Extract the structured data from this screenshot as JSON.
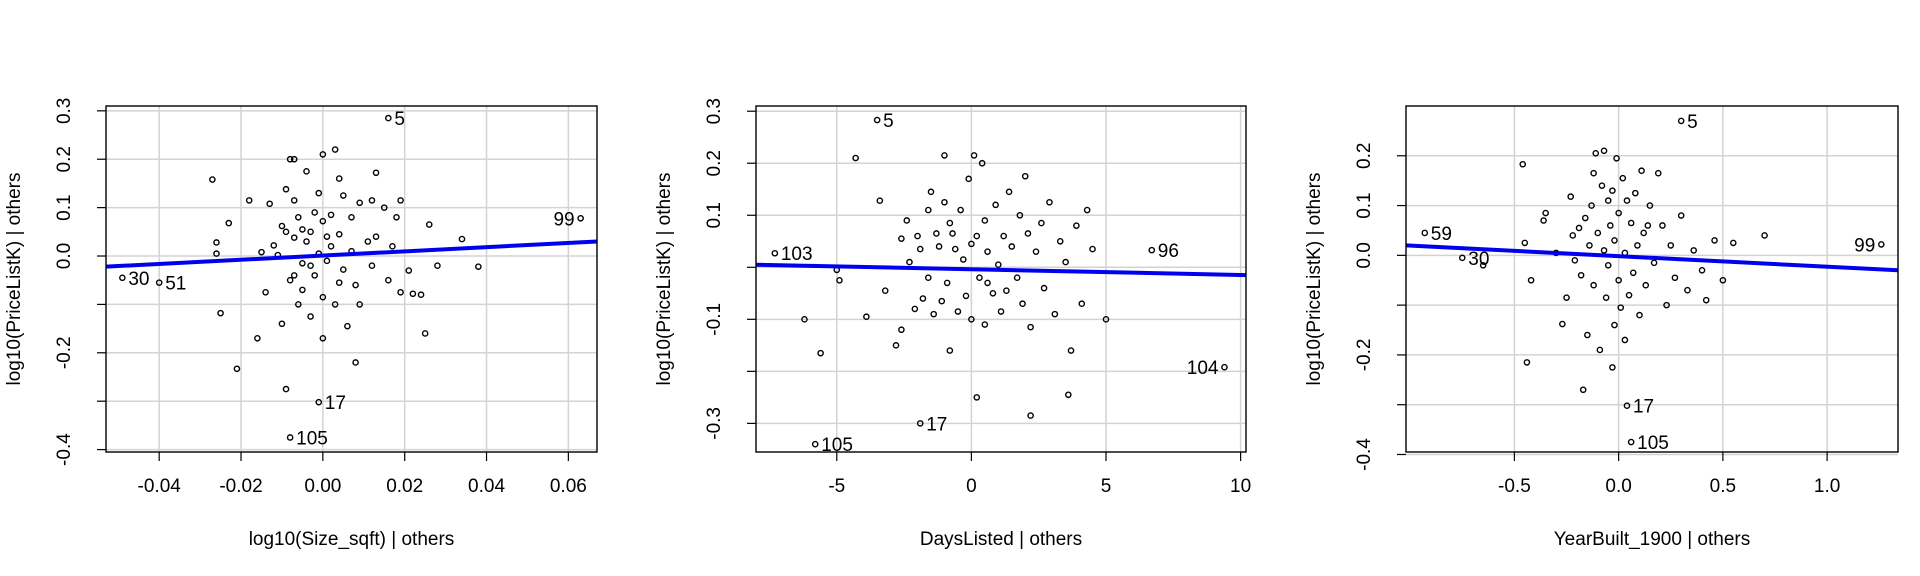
{
  "chart_data": [
    {
      "type": "scatter",
      "title": "",
      "xlabel": "log10(Size_sqft) | others",
      "ylabel": "log10(PriceListK)  | others",
      "xlim": [
        -0.053,
        0.067
      ],
      "ylim": [
        -0.405,
        0.31
      ],
      "xticks": [
        -0.04,
        -0.02,
        0.0,
        0.02,
        0.04,
        0.06
      ],
      "xtick_labels": [
        "-0.04",
        "-0.02",
        "0.00",
        "0.02",
        "0.04",
        "0.06"
      ],
      "yticks": [
        -0.4,
        -0.3,
        -0.2,
        -0.1,
        0.0,
        0.1,
        0.2,
        0.3
      ],
      "ytick_labels": [
        "-0.4",
        "",
        "-0.2",
        "",
        "0.0",
        "0.1",
        "0.2",
        "0.3"
      ],
      "grid": true,
      "fit_line": {
        "x": [
          -0.053,
          0.067
        ],
        "y": [
          -0.022,
          0.03
        ]
      },
      "labeled_points": [
        {
          "label": "5",
          "x": 0.016,
          "y": 0.285
        },
        {
          "label": "99",
          "x": 0.063,
          "y": 0.078
        },
        {
          "label": "30",
          "x": -0.049,
          "y": -0.045
        },
        {
          "label": "51",
          "x": -0.04,
          "y": -0.055
        },
        {
          "label": "17",
          "x": -0.001,
          "y": -0.302
        },
        {
          "label": "105",
          "x": -0.008,
          "y": -0.375
        }
      ],
      "points": [
        [
          -0.027,
          0.158
        ],
        [
          -0.026,
          0.028
        ],
        [
          -0.026,
          0.005
        ],
        [
          -0.025,
          -0.118
        ],
        [
          -0.023,
          0.068
        ],
        [
          -0.021,
          -0.233
        ],
        [
          -0.018,
          0.115
        ],
        [
          -0.016,
          -0.17
        ],
        [
          -0.015,
          0.008
        ],
        [
          -0.014,
          -0.075
        ],
        [
          -0.013,
          0.108
        ],
        [
          -0.012,
          0.022
        ],
        [
          -0.011,
          0.002
        ],
        [
          -0.01,
          0.062
        ],
        [
          -0.01,
          -0.14
        ],
        [
          -0.009,
          -0.275
        ],
        [
          -0.009,
          0.138
        ],
        [
          -0.009,
          0.05
        ],
        [
          -0.008,
          -0.05
        ],
        [
          -0.008,
          0.2
        ],
        [
          -0.007,
          0.2
        ],
        [
          -0.007,
          0.115
        ],
        [
          -0.007,
          0.038
        ],
        [
          -0.007,
          -0.04
        ],
        [
          -0.006,
          -0.1
        ],
        [
          -0.006,
          0.08
        ],
        [
          -0.005,
          0.055
        ],
        [
          -0.005,
          -0.015
        ],
        [
          -0.005,
          -0.07
        ],
        [
          -0.004,
          0.175
        ],
        [
          -0.004,
          0.03
        ],
        [
          -0.003,
          0.05
        ],
        [
          -0.003,
          -0.02
        ],
        [
          -0.003,
          -0.125
        ],
        [
          -0.002,
          0.09
        ],
        [
          -0.002,
          -0.04
        ],
        [
          -0.001,
          0.13
        ],
        [
          -0.001,
          0.005
        ],
        [
          0.0,
          0.21
        ],
        [
          0.0,
          0.072
        ],
        [
          0.0,
          -0.085
        ],
        [
          0.0,
          -0.17
        ],
        [
          0.001,
          0.04
        ],
        [
          0.001,
          -0.01
        ],
        [
          0.002,
          0.085
        ],
        [
          0.002,
          0.02
        ],
        [
          0.003,
          0.22
        ],
        [
          0.003,
          -0.1
        ],
        [
          0.004,
          0.16
        ],
        [
          0.004,
          0.045
        ],
        [
          0.004,
          -0.055
        ],
        [
          0.005,
          0.125
        ],
        [
          0.005,
          -0.028
        ],
        [
          0.006,
          -0.145
        ],
        [
          0.007,
          0.08
        ],
        [
          0.007,
          0.01
        ],
        [
          0.008,
          -0.22
        ],
        [
          0.008,
          -0.06
        ],
        [
          0.009,
          0.11
        ],
        [
          0.009,
          -0.1
        ],
        [
          0.011,
          0.03
        ],
        [
          0.012,
          -0.02
        ],
        [
          0.012,
          0.115
        ],
        [
          0.013,
          0.172
        ],
        [
          0.013,
          0.04
        ],
        [
          0.015,
          0.1
        ],
        [
          0.016,
          -0.05
        ],
        [
          0.017,
          0.02
        ],
        [
          0.018,
          0.08
        ],
        [
          0.019,
          0.115
        ],
        [
          0.019,
          -0.075
        ],
        [
          0.021,
          -0.03
        ],
        [
          0.022,
          -0.078
        ],
        [
          0.024,
          -0.08
        ],
        [
          0.025,
          -0.16
        ],
        [
          0.026,
          0.065
        ],
        [
          0.028,
          -0.02
        ],
        [
          0.034,
          0.035
        ],
        [
          0.038,
          -0.022
        ]
      ]
    },
    {
      "type": "scatter",
      "title": "",
      "xlabel": "DaysListed | others",
      "ylabel": "log10(PriceListK)  | others",
      "xlim": [
        -8.0,
        10.2
      ],
      "ylim": [
        -0.355,
        0.31
      ],
      "xticks": [
        -5,
        0,
        5,
        10
      ],
      "xtick_labels": [
        "-5",
        "0",
        "5",
        "10"
      ],
      "yticks": [
        -0.3,
        -0.2,
        -0.1,
        0.0,
        0.1,
        0.2,
        0.3
      ],
      "ytick_labels": [
        "-0.3",
        "",
        "-0.1",
        "",
        "0.1",
        "0.2",
        "0.3"
      ],
      "grid": true,
      "fit_line": {
        "x": [
          -8.0,
          10.2
        ],
        "y": [
          0.005,
          -0.015
        ]
      },
      "labeled_points": [
        {
          "label": "5",
          "x": -3.5,
          "y": 0.283
        },
        {
          "label": "103",
          "x": -7.3,
          "y": 0.027
        },
        {
          "label": "96",
          "x": 6.7,
          "y": 0.033
        },
        {
          "label": "104",
          "x": 9.4,
          "y": -0.192
        },
        {
          "label": "17",
          "x": -1.9,
          "y": -0.3
        },
        {
          "label": "105",
          "x": -5.8,
          "y": -0.34
        }
      ],
      "points": [
        [
          -6.2,
          -0.1
        ],
        [
          -5.6,
          -0.165
        ],
        [
          -5.0,
          -0.005
        ],
        [
          -4.9,
          -0.025
        ],
        [
          -4.3,
          0.21
        ],
        [
          -3.9,
          -0.095
        ],
        [
          -3.4,
          0.128
        ],
        [
          -3.2,
          -0.045
        ],
        [
          -2.8,
          -0.15
        ],
        [
          -2.6,
          -0.12
        ],
        [
          -2.6,
          0.055
        ],
        [
          -2.4,
          0.09
        ],
        [
          -2.3,
          0.01
        ],
        [
          -2.1,
          -0.08
        ],
        [
          -2.0,
          0.06
        ],
        [
          -1.9,
          0.035
        ],
        [
          -1.8,
          -0.06
        ],
        [
          -1.6,
          0.11
        ],
        [
          -1.6,
          -0.02
        ],
        [
          -1.5,
          0.145
        ],
        [
          -1.4,
          -0.09
        ],
        [
          -1.3,
          0.065
        ],
        [
          -1.2,
          0.04
        ],
        [
          -1.1,
          -0.065
        ],
        [
          -1.0,
          0.215
        ],
        [
          -1.0,
          0.125
        ],
        [
          -0.9,
          -0.03
        ],
        [
          -0.8,
          0.085
        ],
        [
          -0.8,
          -0.16
        ],
        [
          -0.7,
          0.065
        ],
        [
          -0.6,
          0.035
        ],
        [
          -0.5,
          -0.085
        ],
        [
          -0.4,
          0.11
        ],
        [
          -0.3,
          0.015
        ],
        [
          -0.2,
          -0.055
        ],
        [
          -0.1,
          0.17
        ],
        [
          0.0,
          0.045
        ],
        [
          0.0,
          -0.1
        ],
        [
          0.1,
          0.215
        ],
        [
          0.2,
          0.06
        ],
        [
          0.2,
          -0.25
        ],
        [
          0.3,
          -0.02
        ],
        [
          0.4,
          0.2
        ],
        [
          0.5,
          0.09
        ],
        [
          0.5,
          -0.11
        ],
        [
          0.6,
          0.03
        ],
        [
          0.8,
          -0.05
        ],
        [
          0.9,
          0.12
        ],
        [
          1.0,
          0.005
        ],
        [
          1.1,
          -0.085
        ],
        [
          1.2,
          0.06
        ],
        [
          1.3,
          -0.045
        ],
        [
          1.4,
          0.145
        ],
        [
          1.5,
          0.04
        ],
        [
          1.7,
          -0.02
        ],
        [
          1.8,
          0.1
        ],
        [
          1.9,
          -0.07
        ],
        [
          2.0,
          0.175
        ],
        [
          2.1,
          0.065
        ],
        [
          2.2,
          -0.115
        ],
        [
          2.2,
          -0.285
        ],
        [
          2.4,
          0.03
        ],
        [
          2.6,
          0.085
        ],
        [
          2.7,
          -0.04
        ],
        [
          2.9,
          0.125
        ],
        [
          3.1,
          -0.09
        ],
        [
          3.3,
          0.05
        ],
        [
          3.5,
          0.01
        ],
        [
          3.6,
          -0.245
        ],
        [
          3.7,
          -0.16
        ],
        [
          3.9,
          0.08
        ],
        [
          4.1,
          -0.07
        ],
        [
          4.3,
          0.11
        ],
        [
          4.5,
          0.035
        ],
        [
          5.0,
          -0.1
        ],
        [
          0.6,
          -0.03
        ]
      ]
    },
    {
      "type": "scatter",
      "title": "",
      "xlabel": "YearBuilt_1900 | others",
      "ylabel": "log10(PriceListK)  | others",
      "xlim": [
        -1.02,
        1.34
      ],
      "ylim": [
        -0.395,
        0.3
      ],
      "xticks": [
        -0.5,
        0.0,
        0.5,
        1.0
      ],
      "xtick_labels": [
        "-0.5",
        "0.0",
        "0.5",
        "1.0"
      ],
      "yticks": [
        -0.4,
        -0.3,
        -0.2,
        -0.1,
        0.0,
        0.1,
        0.2
      ],
      "ytick_labels": [
        "-0.4",
        "",
        "-0.2",
        "",
        "0.0",
        "0.1",
        "0.2"
      ],
      "grid": true,
      "fit_line": {
        "x": [
          -1.02,
          1.34
        ],
        "y": [
          0.02,
          -0.03
        ]
      },
      "labeled_points": [
        {
          "label": "5",
          "x": 0.3,
          "y": 0.27
        },
        {
          "label": "59",
          "x": -0.93,
          "y": 0.045
        },
        {
          "label": "30",
          "x": -0.75,
          "y": -0.005
        },
        {
          "label": "99",
          "x": 1.26,
          "y": 0.022
        },
        {
          "label": "17",
          "x": 0.04,
          "y": -0.302
        },
        {
          "label": "105",
          "x": 0.06,
          "y": -0.375
        }
      ],
      "points": [
        [
          -0.65,
          -0.02
        ],
        [
          -0.46,
          0.183
        ],
        [
          -0.45,
          0.025
        ],
        [
          -0.44,
          -0.215
        ],
        [
          -0.42,
          -0.05
        ],
        [
          -0.36,
          0.07
        ],
        [
          -0.35,
          0.085
        ],
        [
          -0.3,
          0.005
        ],
        [
          -0.27,
          -0.138
        ],
        [
          -0.25,
          -0.085
        ],
        [
          -0.23,
          0.118
        ],
        [
          -0.22,
          0.04
        ],
        [
          -0.21,
          -0.01
        ],
        [
          -0.19,
          0.055
        ],
        [
          -0.18,
          -0.04
        ],
        [
          -0.17,
          -0.27
        ],
        [
          -0.16,
          0.075
        ],
        [
          -0.15,
          -0.16
        ],
        [
          -0.14,
          0.02
        ],
        [
          -0.13,
          0.1
        ],
        [
          -0.12,
          0.165
        ],
        [
          -0.12,
          -0.06
        ],
        [
          -0.11,
          0.205
        ],
        [
          -0.1,
          0.045
        ],
        [
          -0.09,
          -0.19
        ],
        [
          -0.08,
          0.14
        ],
        [
          -0.07,
          0.21
        ],
        [
          -0.07,
          0.01
        ],
        [
          -0.06,
          -0.085
        ],
        [
          -0.05,
          0.11
        ],
        [
          -0.05,
          -0.02
        ],
        [
          -0.04,
          0.06
        ],
        [
          -0.03,
          -0.225
        ],
        [
          -0.03,
          0.13
        ],
        [
          -0.02,
          0.03
        ],
        [
          -0.01,
          0.195
        ],
        [
          0.0,
          0.085
        ],
        [
          0.0,
          -0.05
        ],
        [
          0.01,
          -0.105
        ],
        [
          0.02,
          0.155
        ],
        [
          0.03,
          0.005
        ],
        [
          0.03,
          -0.17
        ],
        [
          0.04,
          0.11
        ],
        [
          0.05,
          -0.08
        ],
        [
          0.06,
          0.065
        ],
        [
          0.07,
          -0.035
        ],
        [
          0.08,
          0.125
        ],
        [
          0.09,
          0.02
        ],
        [
          0.1,
          -0.12
        ],
        [
          0.11,
          0.17
        ],
        [
          0.12,
          0.045
        ],
        [
          0.13,
          -0.06
        ],
        [
          0.15,
          0.1
        ],
        [
          0.17,
          -0.015
        ],
        [
          0.19,
          0.165
        ],
        [
          0.21,
          0.06
        ],
        [
          0.23,
          -0.1
        ],
        [
          0.25,
          0.02
        ],
        [
          0.27,
          -0.045
        ],
        [
          0.3,
          0.08
        ],
        [
          0.33,
          -0.07
        ],
        [
          0.36,
          0.01
        ],
        [
          0.4,
          -0.03
        ],
        [
          0.42,
          -0.09
        ],
        [
          0.46,
          0.03
        ],
        [
          0.5,
          -0.05
        ],
        [
          0.55,
          0.025
        ],
        [
          0.7,
          0.04
        ],
        [
          -0.02,
          -0.14
        ],
        [
          0.14,
          0.06
        ]
      ]
    }
  ]
}
